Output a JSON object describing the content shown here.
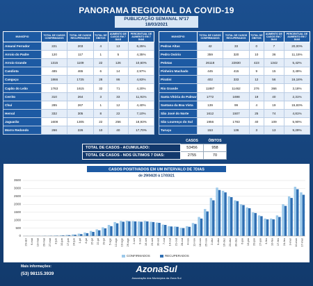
{
  "header": {
    "title": "PANORAMA REGIONAL DA COVID-19",
    "edition": "PUBLICAÇÃO SEMANAL Nº17",
    "date": "18/03/2021"
  },
  "columns": [
    "MUNICÍPIO",
    "TOTAL DE CASOS CONFIRMADOS",
    "TOTAL DE CASOS RECUPERADOS",
    "TOTAL DE ÓBITOS",
    "AUMENTO DE CASOS EM 7 DIAS",
    "PERCENTUAL DE AUMENTO EM 7 DIAS"
  ],
  "tables": [
    {
      "rows": [
        [
          "Amaral Ferrador",
          221,
          203,
          4,
          13,
          "6,25%"
        ],
        [
          "Arroio do Padre",
          120,
          117,
          1,
          5,
          "4,35%"
        ],
        [
          "Arroio Grande",
          1315,
          1109,
          22,
          126,
          "10,60%"
        ],
        [
          "Candiota",
          485,
          465,
          6,
          14,
          "2,97%"
        ],
        [
          "Canguçu",
          1866,
          1725,
          28,
          86,
          "4,83%"
        ],
        [
          "Capão do Leão",
          1763,
          1615,
          32,
          71,
          "4,20%"
        ],
        [
          "Cerrito",
          310,
          264,
          3,
          33,
          "11,91%"
        ],
        [
          "Chuí",
          285,
          267,
          1,
          12,
          "4,40%"
        ],
        [
          "Herval",
          332,
          305,
          8,
          22,
          "7,10%"
        ],
        [
          "Jaguarão",
          1608,
          1305,
          22,
          256,
          "18,93%"
        ],
        [
          "Morro Redondo",
          266,
          226,
          10,
          40,
          "17,70%"
        ]
      ]
    },
    {
      "rows": [
        [
          "Pedras Altas",
          42,
          33,
          0,
          7,
          "20,00%"
        ],
        [
          "Pedro Osório",
          359,
          320,
          10,
          36,
          "11,15%"
        ],
        [
          "Pelotas",
          26118,
          22830,
          423,
          1342,
          "5,42%"
        ],
        [
          "Pinheiro Machado",
          445,
          415,
          9,
          15,
          "3,49%"
        ],
        [
          "Piratini",
          402,
          333,
          12,
          56,
          "16,18%"
        ],
        [
          "Rio Grande",
          11887,
          11462,
          276,
          366,
          "3,18%"
        ],
        [
          "Santa Vitória do Palmar",
          1772,
          1698,
          19,
          40,
          "2,31%"
        ],
        [
          "Santana da Boa Vista",
          139,
          99,
          4,
          19,
          "15,83%"
        ],
        [
          "São José do Norte",
          1612,
          1507,
          25,
          74,
          "4,81%"
        ],
        [
          "São Lourenço do Sul",
          1956,
          1783,
          40,
          109,
          "5,90%"
        ],
        [
          "Turuçu",
          153,
          136,
          3,
          13,
          "9,29%"
        ]
      ]
    }
  ],
  "summary": {
    "columns": [
      "CASOS",
      "ÓBITOS"
    ],
    "rows": [
      {
        "label": "TOTAL DE CASOS - ACUMULADO:",
        "values": [
          53456,
          958
        ]
      },
      {
        "label": "TOTAL DE CASOS - NOS ÚLTIMOS 7 DIAS:",
        "values": [
          2755,
          70
        ]
      }
    ]
  },
  "chart_data": {
    "type": "bar",
    "title": "CASOS POSITIVADOS EM UM INTERVALO DE 7DIAS",
    "subtitle": "de 29/04/20 à 17/03/21",
    "categories": [
      "29-abr",
      "6-mai",
      "13-mai",
      "20-mai",
      "27-mai",
      "3-jun",
      "10-jun",
      "17-jun",
      "24-jun",
      "1-jul",
      "8-jul",
      "15-jul",
      "22-jul",
      "29-jul",
      "5-ago",
      "12-ago",
      "19-ago",
      "26-ago",
      "2-set",
      "9-set",
      "16-set",
      "23-set",
      "30-set",
      "7-out",
      "14-out",
      "21-out",
      "28-out",
      "4-nov",
      "11-nov",
      "18-nov",
      "25-nov",
      "2-dez",
      "9-dez",
      "16-dez",
      "23-dez",
      "30-dez",
      "6-jan",
      "13-jan",
      "20-jan",
      "27-jan",
      "3-fev",
      "10-fev",
      "17-fev",
      "24-fev",
      "3-mar",
      "10-mar",
      "17-mar"
    ],
    "series": [
      {
        "name": "CONFIRMADOS",
        "color": "#9cc9ea",
        "values": [
          10,
          10,
          15,
          20,
          25,
          35,
          50,
          70,
          100,
          150,
          220,
          320,
          420,
          550,
          700,
          880,
          950,
          960,
          940,
          920,
          950,
          900,
          850,
          720,
          620,
          600,
          520,
          620,
          820,
          1200,
          1700,
          2400,
          3050,
          2850,
          2500,
          2250,
          2000,
          1800,
          1500,
          1300,
          1100,
          1100,
          1300,
          2000,
          2500,
          3100,
          2750
        ]
      },
      {
        "name": "RECUPERADOS",
        "color": "#2f6fb3",
        "values": [
          5,
          8,
          10,
          15,
          20,
          25,
          40,
          55,
          80,
          120,
          180,
          260,
          360,
          480,
          620,
          800,
          900,
          930,
          920,
          900,
          920,
          880,
          830,
          700,
          600,
          580,
          500,
          580,
          760,
          1100,
          1550,
          2250,
          2900,
          2750,
          2450,
          2200,
          1950,
          1750,
          1450,
          1250,
          1050,
          1050,
          1200,
          1900,
          2400,
          2950,
          2600
        ]
      }
    ],
    "ylim": [
      0,
      3500
    ],
    "yticks": [
      0,
      500,
      1000,
      1500,
      2000,
      2500,
      3000,
      3500
    ],
    "grid": true
  },
  "footer": {
    "info_label": "Mais informações:",
    "phone": "(53) 98115.3939",
    "logo": "AzonaSul",
    "logo_subtitle": "Associação dos Municípios da Zona Sul"
  }
}
